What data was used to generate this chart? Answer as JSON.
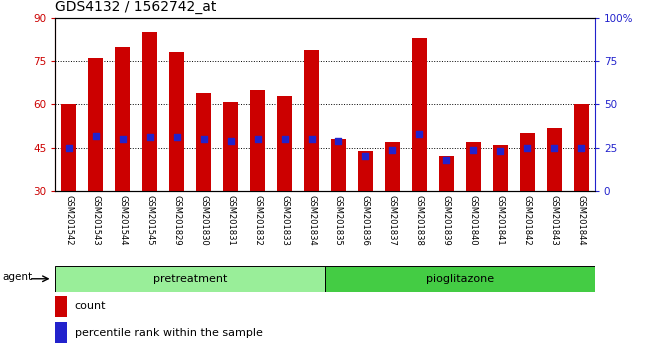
{
  "title": "GDS4132 / 1562742_at",
  "samples": [
    "GSM201542",
    "GSM201543",
    "GSM201544",
    "GSM201545",
    "GSM201829",
    "GSM201830",
    "GSM201831",
    "GSM201832",
    "GSM201833",
    "GSM201834",
    "GSM201835",
    "GSM201836",
    "GSM201837",
    "GSM201838",
    "GSM201839",
    "GSM201840",
    "GSM201841",
    "GSM201842",
    "GSM201843",
    "GSM201844"
  ],
  "count_values": [
    60,
    76,
    80,
    85,
    78,
    64,
    61,
    65,
    63,
    79,
    48,
    44,
    47,
    83,
    42,
    47,
    46,
    50,
    52,
    60
  ],
  "percentile_values": [
    25,
    32,
    30,
    31,
    31,
    30,
    29,
    30,
    30,
    30,
    29,
    20,
    24,
    33,
    18,
    24,
    23,
    25,
    25,
    25
  ],
  "ylim_left": [
    30,
    90
  ],
  "ylim_right": [
    0,
    100
  ],
  "y_ticks_left": [
    30,
    45,
    60,
    75,
    90
  ],
  "y_ticks_right": [
    0,
    25,
    50,
    75,
    100
  ],
  "bar_color": "#CC0000",
  "dot_color": "#2222CC",
  "bar_width": 0.55,
  "grid_lines": [
    45,
    60,
    75
  ],
  "n_pretreatment": 10,
  "n_pioglitazone": 10,
  "pretreatment_color": "#99EE99",
  "pioglitazone_color": "#44CC44",
  "agent_label": "agent",
  "pretreatment_label": "pretreatment",
  "pioglitazone_label": "pioglitazone",
  "legend_count_label": "count",
  "legend_percentile_label": "percentile rank within the sample",
  "tick_bg_color": "#C8C8C8",
  "fig_bg_color": "#FFFFFF",
  "title_fontsize": 10,
  "axis_color_left": "#CC0000",
  "axis_color_right": "#2222CC"
}
